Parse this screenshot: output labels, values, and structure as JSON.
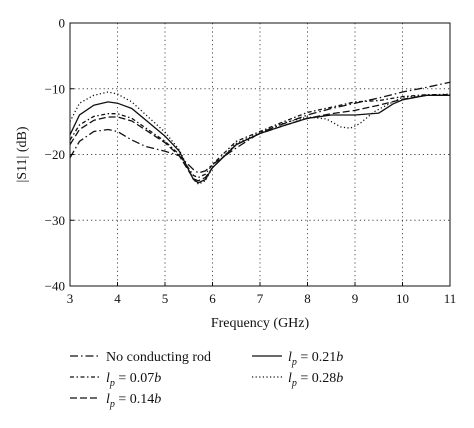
{
  "chart_data": {
    "type": "line",
    "xlabel": "Frequency (GHz)",
    "ylabel": "|S11| (dB)",
    "xlim": [
      3,
      11
    ],
    "ylim": [
      -40,
      0
    ],
    "xticks": [
      3,
      4,
      5,
      6,
      7,
      8,
      9,
      10,
      11
    ],
    "yticks": [
      0,
      -10,
      -20,
      -30,
      -40
    ],
    "xtick_labels": [
      "3",
      "4",
      "5",
      "6",
      "7",
      "8",
      "9",
      "10",
      "11"
    ],
    "ytick_labels": [
      "0",
      "−10",
      "−20",
      "−30",
      "−40"
    ],
    "grid": true,
    "legend_position": "bottom",
    "series": [
      {
        "name": "No conducting rod",
        "label_parts": [
          "No conducting rod"
        ],
        "dash": "dashdot",
        "points": [
          [
            3,
            -20.5
          ],
          [
            3.2,
            -18
          ],
          [
            3.5,
            -16.5
          ],
          [
            3.8,
            -16.2
          ],
          [
            4,
            -16.5
          ],
          [
            4.3,
            -17.8
          ],
          [
            4.6,
            -18.8
          ],
          [
            5,
            -19.5
          ],
          [
            5.3,
            -20.2
          ],
          [
            5.6,
            -22.3
          ],
          [
            5.7,
            -22.8
          ],
          [
            5.85,
            -22.5
          ],
          [
            6,
            -21.5
          ],
          [
            6.5,
            -19
          ],
          [
            7,
            -16.7
          ],
          [
            7.5,
            -15.3
          ],
          [
            8,
            -14
          ],
          [
            8.5,
            -13
          ],
          [
            9,
            -12.2
          ],
          [
            9.5,
            -11.4
          ],
          [
            10,
            -10.5
          ],
          [
            10.5,
            -9.8
          ],
          [
            11,
            -9
          ]
        ]
      },
      {
        "name": "lp = 0.07b",
        "label_parts": [
          "l",
          "p",
          " = 0.07",
          "b"
        ],
        "dash": "dashdot2",
        "points": [
          [
            3,
            -17.8
          ],
          [
            3.2,
            -15.5
          ],
          [
            3.5,
            -14.2
          ],
          [
            3.8,
            -13.8
          ],
          [
            4,
            -13.8
          ],
          [
            4.3,
            -14.5
          ],
          [
            4.6,
            -16
          ],
          [
            5,
            -18
          ],
          [
            5.3,
            -20
          ],
          [
            5.6,
            -23.2
          ],
          [
            5.7,
            -23.5
          ],
          [
            5.85,
            -23
          ],
          [
            6,
            -21.5
          ],
          [
            6.5,
            -18
          ],
          [
            7,
            -16.5
          ],
          [
            7.5,
            -15
          ],
          [
            8,
            -13.6
          ],
          [
            8.5,
            -12.8
          ],
          [
            9,
            -12
          ],
          [
            9.5,
            -11.8
          ],
          [
            10,
            -11.2
          ],
          [
            10.5,
            -10.9
          ],
          [
            11,
            -10.9
          ]
        ]
      },
      {
        "name": "lp = 0.14b",
        "label_parts": [
          "l",
          "p",
          " = 0.14",
          "b"
        ],
        "dash": "dashed",
        "points": [
          [
            3,
            -18.5
          ],
          [
            3.2,
            -16.2
          ],
          [
            3.5,
            -14.8
          ],
          [
            3.8,
            -14.3
          ],
          [
            4,
            -14.3
          ],
          [
            4.3,
            -14.9
          ],
          [
            4.6,
            -16.3
          ],
          [
            5,
            -18.2
          ],
          [
            5.3,
            -20.2
          ],
          [
            5.6,
            -23.7
          ],
          [
            5.7,
            -24
          ],
          [
            5.85,
            -23.5
          ],
          [
            6,
            -22
          ],
          [
            6.5,
            -18.5
          ],
          [
            7,
            -16.8
          ],
          [
            7.5,
            -15.6
          ],
          [
            8,
            -14.5
          ],
          [
            8.5,
            -13.8
          ],
          [
            9,
            -13.3
          ],
          [
            9.5,
            -12.5
          ],
          [
            10,
            -11.6
          ],
          [
            10.5,
            -11
          ],
          [
            11,
            -11
          ]
        ]
      },
      {
        "name": "lp = 0.21b",
        "label_parts": [
          "l",
          "p",
          " = 0.21",
          "b"
        ],
        "dash": "solid",
        "points": [
          [
            3,
            -17
          ],
          [
            3.2,
            -14
          ],
          [
            3.5,
            -12.5
          ],
          [
            3.8,
            -12
          ],
          [
            4,
            -12.2
          ],
          [
            4.3,
            -13
          ],
          [
            4.6,
            -14.8
          ],
          [
            5,
            -17.2
          ],
          [
            5.3,
            -19.5
          ],
          [
            5.6,
            -23.8
          ],
          [
            5.7,
            -24.3
          ],
          [
            5.85,
            -23.8
          ],
          [
            6,
            -22
          ],
          [
            6.5,
            -18.5
          ],
          [
            7,
            -16.8
          ],
          [
            7.5,
            -15.6
          ],
          [
            8,
            -14.5
          ],
          [
            8.5,
            -14
          ],
          [
            9,
            -14
          ],
          [
            9.5,
            -13.7
          ],
          [
            9.8,
            -12.3
          ],
          [
            10,
            -11.7
          ],
          [
            10.5,
            -11
          ],
          [
            11,
            -11
          ]
        ]
      },
      {
        "name": "lp = 0.28b",
        "label_parts": [
          "l",
          "p",
          " = 0.28",
          "b"
        ],
        "dash": "dotted",
        "points": [
          [
            3,
            -15
          ],
          [
            3.2,
            -12.2
          ],
          [
            3.5,
            -11
          ],
          [
            3.8,
            -10.5
          ],
          [
            4,
            -10.8
          ],
          [
            4.3,
            -12
          ],
          [
            4.6,
            -14
          ],
          [
            5,
            -16.6
          ],
          [
            5.3,
            -19.3
          ],
          [
            5.6,
            -23.8
          ],
          [
            5.7,
            -24.5
          ],
          [
            5.85,
            -24
          ],
          [
            6,
            -22
          ],
          [
            6.5,
            -18.3
          ],
          [
            7,
            -16.7
          ],
          [
            7.5,
            -15.2
          ],
          [
            8,
            -14.3
          ],
          [
            8.4,
            -14.6
          ],
          [
            8.7,
            -15.8
          ],
          [
            8.9,
            -16
          ],
          [
            9.1,
            -15.3
          ],
          [
            9.4,
            -13.5
          ],
          [
            9.8,
            -12
          ],
          [
            10,
            -11.3
          ],
          [
            10.5,
            -11
          ],
          [
            11,
            -10.8
          ]
        ]
      }
    ]
  }
}
